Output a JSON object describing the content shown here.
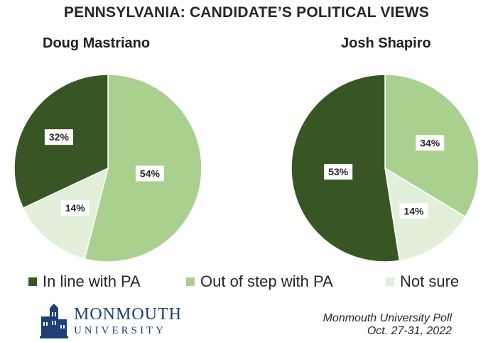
{
  "title": "PENNSYLVANIA: CANDIDATE’S POLITICAL VIEWS",
  "colors": {
    "in_line": "#375623",
    "out_of_step": "#a9d08e",
    "not_sure": "#e2efda"
  },
  "chart_data": [
    {
      "type": "pie",
      "title": "Doug Mastriano",
      "categories": [
        "In line with PA",
        "Out of step with PA",
        "Not sure"
      ],
      "values": [
        32,
        54,
        14
      ],
      "labels": [
        "32%",
        "54%",
        "14%"
      ]
    },
    {
      "type": "pie",
      "title": "Josh Shapiro",
      "categories": [
        "In line with PA",
        "Out of step with PA",
        "Not sure"
      ],
      "values": [
        53,
        34,
        14
      ],
      "labels": [
        "53%",
        "34%",
        "14%"
      ]
    }
  ],
  "legend": [
    {
      "label": "In line with PA",
      "color": "#375623"
    },
    {
      "label": "Out of step with PA",
      "color": "#a9d08e"
    },
    {
      "label": "Not sure",
      "color": "#e2efda"
    }
  ],
  "logo": {
    "line1": "MONMOUTH",
    "line2": "UNIVERSITY",
    "icon": "building-icon"
  },
  "source": {
    "line1": "Monmouth University Poll",
    "line2": "Oct. 27-31, 2022"
  }
}
